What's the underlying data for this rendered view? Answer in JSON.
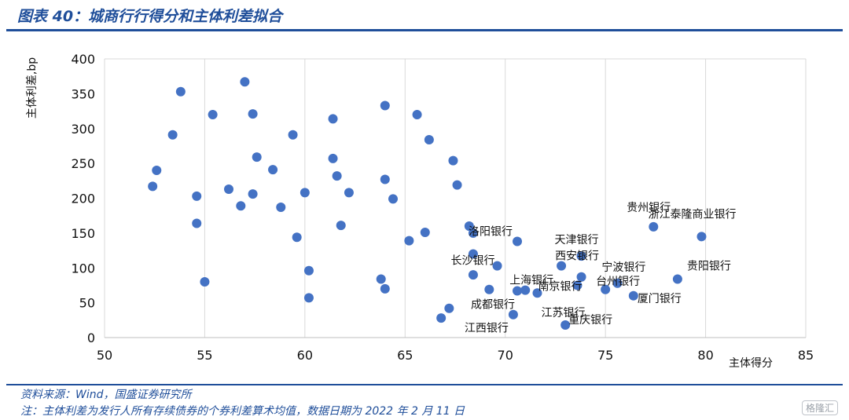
{
  "header": {
    "title": "图表 40：城商行行得分和主体利差拟合"
  },
  "footer": {
    "source": "资料来源：Wind，国盛证券研究所",
    "note": "注：主体利差为发行人所有存续债券的个券利差算术均值，数据日期为 2022 年 2 月 11 日",
    "watermark": "格隆汇"
  },
  "chart_data": {
    "type": "scatter",
    "xlabel": "主体得分",
    "ylabel": "主体利差,bp",
    "xlim": [
      50,
      85
    ],
    "ylim": [
      0,
      400
    ],
    "xticks": [
      50,
      55,
      60,
      65,
      70,
      75,
      80,
      85
    ],
    "yticks": [
      0,
      50,
      100,
      150,
      200,
      250,
      300,
      350,
      400
    ],
    "grid": "vertical",
    "color": "#4472c4",
    "points": [
      {
        "x": 52.4,
        "y": 217
      },
      {
        "x": 52.6,
        "y": 240
      },
      {
        "x": 53.4,
        "y": 291
      },
      {
        "x": 53.8,
        "y": 353
      },
      {
        "x": 54.6,
        "y": 203
      },
      {
        "x": 54.6,
        "y": 164
      },
      {
        "x": 55.0,
        "y": 80
      },
      {
        "x": 55.4,
        "y": 320
      },
      {
        "x": 56.2,
        "y": 213
      },
      {
        "x": 56.8,
        "y": 189
      },
      {
        "x": 57.0,
        "y": 367
      },
      {
        "x": 57.4,
        "y": 321
      },
      {
        "x": 57.4,
        "y": 206
      },
      {
        "x": 57.6,
        "y": 259
      },
      {
        "x": 58.4,
        "y": 241
      },
      {
        "x": 58.8,
        "y": 187
      },
      {
        "x": 59.4,
        "y": 291
      },
      {
        "x": 59.6,
        "y": 144
      },
      {
        "x": 60.0,
        "y": 208
      },
      {
        "x": 60.2,
        "y": 96
      },
      {
        "x": 60.2,
        "y": 57
      },
      {
        "x": 61.4,
        "y": 314
      },
      {
        "x": 61.4,
        "y": 257
      },
      {
        "x": 61.6,
        "y": 232
      },
      {
        "x": 61.8,
        "y": 161
      },
      {
        "x": 62.2,
        "y": 208
      },
      {
        "x": 63.8,
        "y": 84
      },
      {
        "x": 64.0,
        "y": 333
      },
      {
        "x": 64.0,
        "y": 227
      },
      {
        "x": 64.0,
        "y": 70
      },
      {
        "x": 64.4,
        "y": 199
      },
      {
        "x": 65.2,
        "y": 139
      },
      {
        "x": 65.6,
        "y": 320
      },
      {
        "x": 66.0,
        "y": 151
      },
      {
        "x": 66.2,
        "y": 284
      },
      {
        "x": 66.8,
        "y": 28
      },
      {
        "x": 67.2,
        "y": 42
      },
      {
        "x": 67.4,
        "y": 254
      },
      {
        "x": 67.6,
        "y": 219
      },
      {
        "x": 68.2,
        "y": 160
      },
      {
        "x": 68.4,
        "y": 150
      },
      {
        "x": 68.4,
        "y": 120
      },
      {
        "x": 68.4,
        "y": 90
      },
      {
        "x": 69.2,
        "y": 69
      },
      {
        "x": 69.6,
        "y": 103,
        "label": "长沙银行"
      },
      {
        "x": 70.4,
        "y": 33,
        "label": "江西银行"
      },
      {
        "x": 70.6,
        "y": 138,
        "label": "洛阳银行"
      },
      {
        "x": 70.6,
        "y": 67,
        "label": "成都银行"
      },
      {
        "x": 71.0,
        "y": 68,
        "label": "上海银行"
      },
      {
        "x": 71.6,
        "y": 64,
        "label": "江苏银行"
      },
      {
        "x": 72.8,
        "y": 103,
        "label": "西安银行"
      },
      {
        "x": 73.0,
        "y": 18,
        "label": "重庆银行"
      },
      {
        "x": 73.6,
        "y": 75,
        "label": "南京银行"
      },
      {
        "x": 73.8,
        "y": 87
      },
      {
        "x": 73.8,
        "y": 117,
        "label": "天津银行"
      },
      {
        "x": 75.0,
        "y": 69,
        "label": "台州银行"
      },
      {
        "x": 75.6,
        "y": 78,
        "label": "宁波银行"
      },
      {
        "x": 76.4,
        "y": 60,
        "label": "厦门银行"
      },
      {
        "x": 77.4,
        "y": 159,
        "label": "贵州银行"
      },
      {
        "x": 78.6,
        "y": 84,
        "label": "贵阳银行"
      },
      {
        "x": 79.8,
        "y": 145,
        "label": "浙江泰隆商业银行"
      }
    ]
  }
}
